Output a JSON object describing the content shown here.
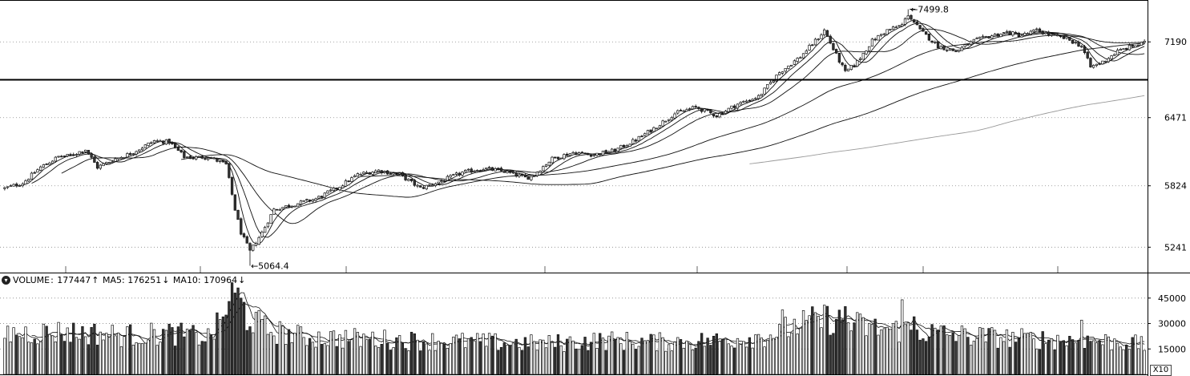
{
  "chart_data": {
    "type": "candlestick",
    "price_axis": {
      "ticks": [
        5241,
        5824,
        6471,
        7190
      ],
      "ylim": [
        5000,
        7580
      ],
      "grid": "dotted"
    },
    "annotations": {
      "high": 7499.8,
      "low": 5064.4
    },
    "support_line": 6830,
    "price_profile": [
      [
        0,
        5800
      ],
      [
        6,
        5850
      ],
      [
        12,
        6000
      ],
      [
        18,
        6100
      ],
      [
        22,
        6110
      ],
      [
        27,
        6170
      ],
      [
        31,
        6000
      ],
      [
        37,
        6080
      ],
      [
        42,
        6130
      ],
      [
        46,
        6190
      ],
      [
        50,
        6250
      ],
      [
        55,
        6240
      ],
      [
        60,
        6100
      ],
      [
        63,
        6090
      ],
      [
        68,
        6100
      ],
      [
        74,
        6025
      ],
      [
        77,
        5600
      ],
      [
        79,
        5380
      ],
      [
        82,
        5200
      ],
      [
        86,
        5380
      ],
      [
        90,
        5600
      ],
      [
        97,
        5650
      ],
      [
        104,
        5700
      ],
      [
        111,
        5800
      ],
      [
        118,
        5930
      ],
      [
        125,
        5970
      ],
      [
        132,
        5930
      ],
      [
        139,
        5800
      ],
      [
        146,
        5870
      ],
      [
        153,
        5950
      ],
      [
        160,
        5990
      ],
      [
        167,
        5960
      ],
      [
        174,
        5900
      ],
      [
        176,
        5910
      ],
      [
        183,
        6080
      ],
      [
        190,
        6140
      ],
      [
        197,
        6120
      ],
      [
        204,
        6160
      ],
      [
        211,
        6260
      ],
      [
        217,
        6370
      ],
      [
        224,
        6510
      ],
      [
        231,
        6570
      ],
      [
        238,
        6490
      ],
      [
        245,
        6600
      ],
      [
        252,
        6670
      ],
      [
        259,
        6900
      ],
      [
        266,
        7050
      ],
      [
        272,
        7230
      ],
      [
        274,
        7300
      ],
      [
        277,
        7120
      ],
      [
        281,
        6900
      ],
      [
        285,
        7000
      ],
      [
        290,
        7200
      ],
      [
        295,
        7300
      ],
      [
        300,
        7350
      ],
      [
        302,
        7450
      ],
      [
        306,
        7300
      ],
      [
        312,
        7150
      ],
      [
        318,
        7100
      ],
      [
        324,
        7200
      ],
      [
        330,
        7250
      ],
      [
        335,
        7280
      ],
      [
        340,
        7250
      ],
      [
        345,
        7300
      ],
      [
        350,
        7250
      ],
      [
        355,
        7220
      ],
      [
        360,
        7150
      ],
      [
        363,
        6950
      ],
      [
        367,
        7000
      ],
      [
        372,
        7100
      ],
      [
        377,
        7150
      ],
      [
        381,
        7180
      ]
    ],
    "volume": {
      "indicator": "VOLUME",
      "value": "177447",
      "ma5_label": "MA5: 176251",
      "ma10_label": "MA10: 170964",
      "up_arrow": "↑",
      "down_arrow": "↓",
      "axis_ticks": [
        15000,
        30000,
        45000
      ],
      "ylim": [
        0,
        52000
      ],
      "multiplier": "X10",
      "profile": [
        [
          0,
          24000
        ],
        [
          20,
          25000
        ],
        [
          40,
          23000
        ],
        [
          55,
          24000
        ],
        [
          68,
          22000
        ],
        [
          72,
          30000
        ],
        [
          75,
          44000
        ],
        [
          78,
          48000
        ],
        [
          81,
          34000
        ],
        [
          88,
          26000
        ],
        [
          100,
          22000
        ],
        [
          120,
          21000
        ],
        [
          135,
          20000
        ],
        [
          160,
          19000
        ],
        [
          180,
          18000
        ],
        [
          200,
          20000
        ],
        [
          220,
          19000
        ],
        [
          240,
          20000
        ],
        [
          255,
          23000
        ],
        [
          265,
          29000
        ],
        [
          275,
          33000
        ],
        [
          282,
          30000
        ],
        [
          290,
          27000
        ],
        [
          300,
          26000
        ],
        [
          320,
          23000
        ],
        [
          340,
          21000
        ],
        [
          360,
          20000
        ],
        [
          375,
          19000
        ],
        [
          381,
          17000
        ]
      ],
      "spikes": [
        [
          77,
          48000
        ],
        [
          78,
          51000
        ],
        [
          79,
          45000
        ],
        [
          260,
          38000
        ],
        [
          281,
          40000
        ],
        [
          300,
          44000
        ],
        [
          304,
          34000
        ],
        [
          360,
          32000
        ]
      ]
    },
    "moving_average_periods": [
      5,
      10,
      20,
      60,
      120,
      250
    ]
  },
  "ui": {
    "collapse_icon": "▾",
    "high_arrow": "←",
    "low_arrow": "←"
  }
}
